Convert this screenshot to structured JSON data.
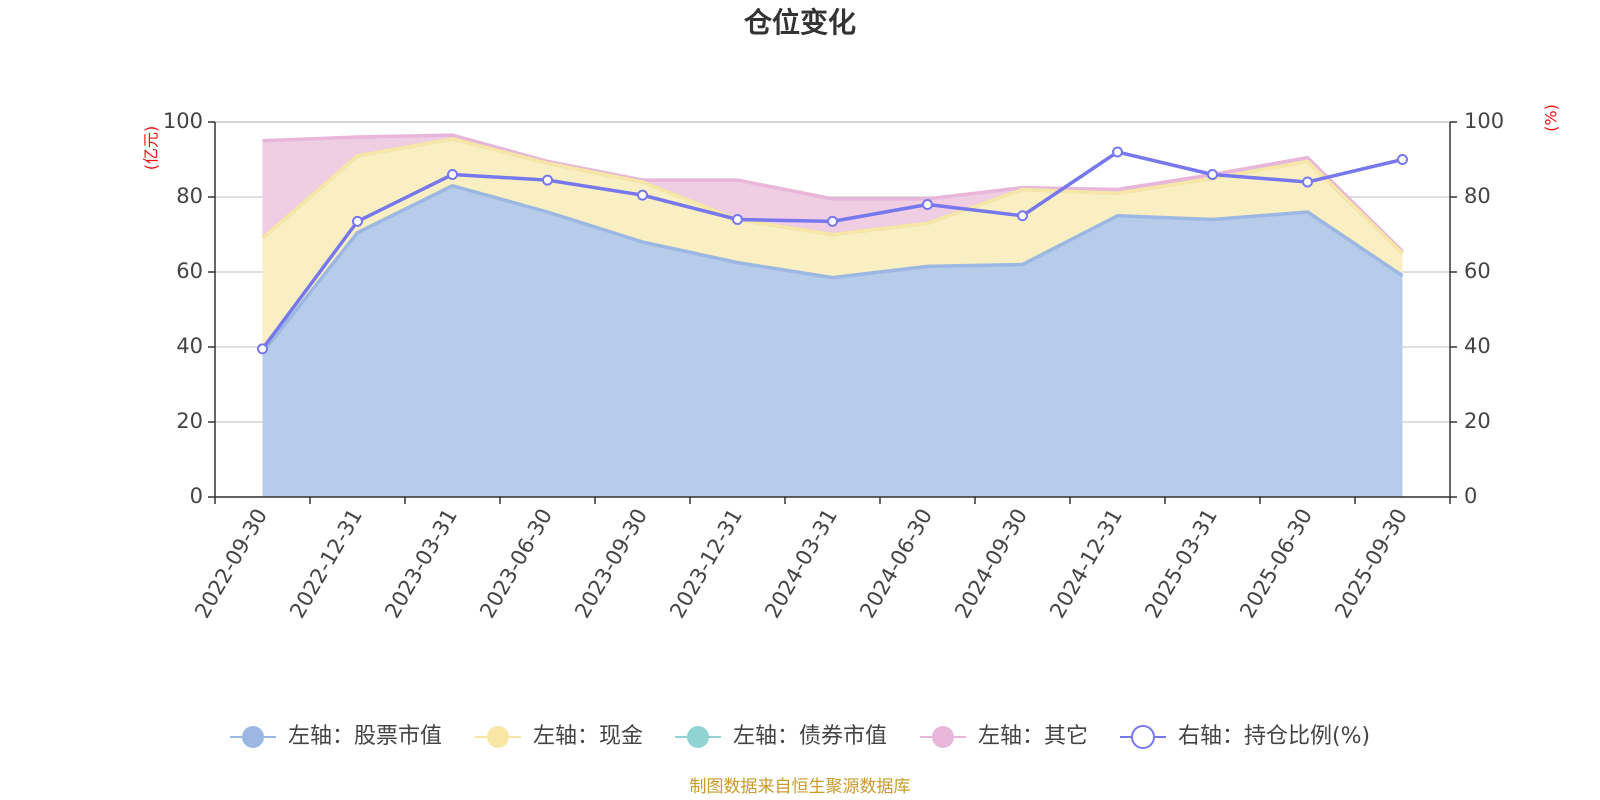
{
  "chart_data": {
    "type": "area",
    "title": "仓位变化",
    "categories": [
      "2022-09-30",
      "2022-12-31",
      "2023-03-31",
      "2023-06-30",
      "2023-09-30",
      "2023-12-31",
      "2024-03-31",
      "2024-06-30",
      "2024-09-30",
      "2024-12-31",
      "2025-03-31",
      "2025-06-30",
      "2025-09-30"
    ],
    "left_axis": {
      "unit": "(亿元)",
      "ylim": [
        0,
        100
      ],
      "ticks": [
        "0",
        "20",
        "40",
        "60",
        "80",
        "100"
      ]
    },
    "right_axis": {
      "unit": "(%)",
      "ylim": [
        0,
        100
      ],
      "ticks": [
        "0",
        "20",
        "40",
        "60",
        "80",
        "100"
      ]
    },
    "stacked_series_cumulative": true,
    "series": [
      {
        "name": "左轴：股票市值",
        "axis": "left",
        "kind": "area",
        "color": "#9cb8e2",
        "fill": "#b7cbea",
        "values": [
          38.5,
          70.5,
          83.0,
          76.0,
          68.0,
          62.5,
          58.5,
          61.5,
          62.0,
          75.0,
          74.0,
          76.0,
          59.0
        ]
      },
      {
        "name": "左轴：现金",
        "axis": "left",
        "kind": "area",
        "color": "#f7e6a6",
        "fill": "#f9efc2",
        "values": [
          69.0,
          91.0,
          95.5,
          89.0,
          84.0,
          74.0,
          70.0,
          73.0,
          82.0,
          81.0,
          85.0,
          89.5,
          65.0
        ]
      },
      {
        "name": "左轴：债券市值",
        "axis": "left",
        "kind": "area",
        "color": "#8fd3d3",
        "fill": "#bfe5df",
        "values": [
          69.0,
          91.0,
          95.5,
          89.0,
          84.0,
          74.0,
          70.0,
          73.0,
          82.0,
          81.0,
          85.0,
          89.5,
          65.0
        ]
      },
      {
        "name": "左轴：其它",
        "axis": "left",
        "kind": "area",
        "color": "#e8b6d8",
        "fill": "#efcde3",
        "values": [
          95.0,
          96.0,
          96.5,
          89.5,
          84.5,
          84.5,
          79.5,
          79.5,
          82.5,
          82.0,
          86.0,
          90.5,
          65.5
        ]
      },
      {
        "name": "右轴：持仓比例(%)",
        "axis": "right",
        "kind": "line",
        "color": "#7878ee",
        "values": [
          39.5,
          73.5,
          86.0,
          84.5,
          80.5,
          74.0,
          73.5,
          78.0,
          75.0,
          92.0,
          86.0,
          84.0,
          90.0
        ]
      }
    ],
    "legend_position": "bottom",
    "grid": true
  },
  "source_note": "制图数据来自恒生聚源数据库"
}
